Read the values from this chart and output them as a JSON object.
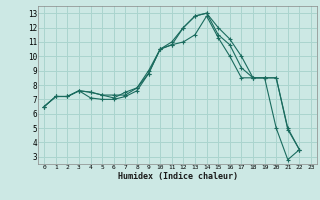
{
  "xlabel": "Humidex (Indice chaleur)",
  "bg_color": "#cce8e4",
  "grid_color": "#aad4ce",
  "line_color": "#1a6b5e",
  "xlim": [
    -0.5,
    23.5
  ],
  "ylim": [
    2.5,
    13.5
  ],
  "xticks": [
    0,
    1,
    2,
    3,
    4,
    5,
    6,
    7,
    8,
    9,
    10,
    11,
    12,
    13,
    14,
    15,
    16,
    17,
    18,
    19,
    20,
    21,
    22,
    23
  ],
  "yticks": [
    3,
    4,
    5,
    6,
    7,
    8,
    9,
    10,
    11,
    12,
    13
  ],
  "series": [
    [
      6.5,
      7.2,
      7.2,
      7.6,
      7.1,
      7.0,
      7.0,
      7.2,
      7.6,
      8.8,
      10.5,
      10.8,
      11.0,
      11.5,
      12.8,
      11.3,
      10.0,
      8.5,
      8.5,
      8.5,
      8.5,
      5.0,
      3.5
    ],
    [
      6.5,
      7.2,
      7.2,
      7.6,
      7.5,
      7.3,
      7.1,
      7.5,
      7.8,
      8.8,
      10.5,
      10.8,
      12.0,
      12.8,
      13.0,
      11.5,
      10.8,
      9.2,
      8.5,
      8.5,
      5.0,
      2.8,
      3.5
    ],
    [
      6.5,
      7.2,
      7.2,
      7.6,
      7.5,
      7.3,
      7.3,
      7.3,
      7.8,
      9.0,
      10.5,
      11.0,
      12.0,
      12.8,
      13.0,
      12.0,
      11.2,
      10.0,
      8.5,
      8.5,
      8.5,
      4.9,
      3.5
    ]
  ]
}
